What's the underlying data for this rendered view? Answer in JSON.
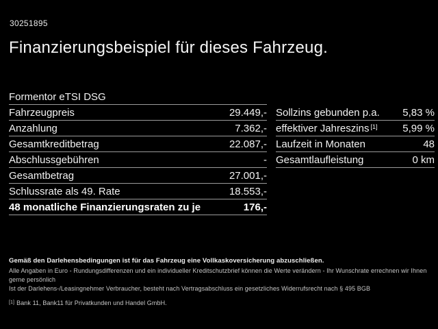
{
  "colors": {
    "background": "#000000",
    "text": "#f2f2f2",
    "divider": "#9c9c9c",
    "fineprint_text": "#c8c8c8"
  },
  "header": {
    "vehicle_id": "30251895",
    "title": "Finanzierungsbeispiel für dieses Fahrzeug."
  },
  "model_name": "Formentor eTSI DSG",
  "finance_table": {
    "rows": [
      {
        "label": "Fahrzeugpreis",
        "value": "29.449,-"
      },
      {
        "label": "Anzahlung",
        "value": "7.362,-"
      },
      {
        "label": "Gesamtkreditbetrag",
        "value": "22.087,-"
      },
      {
        "label": "Abschlussgebühren",
        "value": "-"
      },
      {
        "label": "Gesamtbetrag",
        "value": "27.001,-"
      },
      {
        "label": "Schlussrate als 49. Rate",
        "value": "18.553,-"
      },
      {
        "label": "48 monatliche Finanzierungsraten zu je",
        "value": "176,-"
      }
    ]
  },
  "conditions_table": {
    "rows": [
      {
        "label": "Sollzins gebunden p.a.",
        "sup": "",
        "value": "5,83 %"
      },
      {
        "label": "effektiver Jahreszins",
        "sup": "[1]",
        "value": "5,99 %"
      },
      {
        "label": "Laufzeit in Monaten",
        "sup": "",
        "value": "48"
      },
      {
        "label": "Gesamtlaufleistung",
        "sup": "",
        "value": "0 km"
      }
    ]
  },
  "fine_print": {
    "line1": "Gemäß den Darlehensbedingungen ist für das Fahrzeug eine Vollkaskoversicherung abzuschließen.",
    "line2": "Alle Angaben in Euro - Rundungsdifferenzen und ein individueller Kreditschutzbrief können die Werte verändern - Ihr Wunschrate errechnen wir Ihnen gerne persönlich",
    "line3": "Ist der Darlehens-/Leasingnehmer Verbraucher, besteht nach Vertragsabschluss ein gesetzliches Widerrufsrecht nach § 495 BGB",
    "footnote_marker": "[1]",
    "footnote_text": "Bank 11, Bank11 für Privatkunden und Handel GmbH."
  }
}
